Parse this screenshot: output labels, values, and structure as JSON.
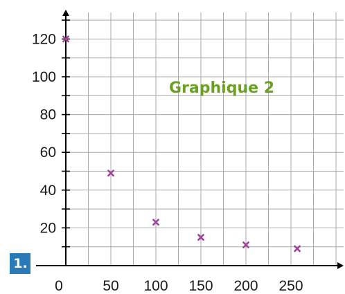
{
  "exercise_badge": "1.",
  "chart_data": {
    "type": "scatter",
    "title": "Graphique 2",
    "xlabel": "",
    "ylabel": "",
    "xlim": [
      0,
      305
    ],
    "ylim": [
      0,
      135
    ],
    "x_ticks": [
      0,
      50,
      100,
      150,
      200,
      250
    ],
    "y_ticks": [
      20,
      40,
      60,
      80,
      100,
      120
    ],
    "grid": true,
    "colors": {
      "title": "#6aa121",
      "marker": "#a0449a",
      "grid": "#a9a9a9",
      "axis": "#000000",
      "badge": "#2a7ab8"
    },
    "series": [
      {
        "x": [
          0,
          50,
          100,
          150,
          200,
          257
        ],
        "y": [
          120,
          49,
          23,
          15,
          11,
          9
        ]
      }
    ]
  }
}
